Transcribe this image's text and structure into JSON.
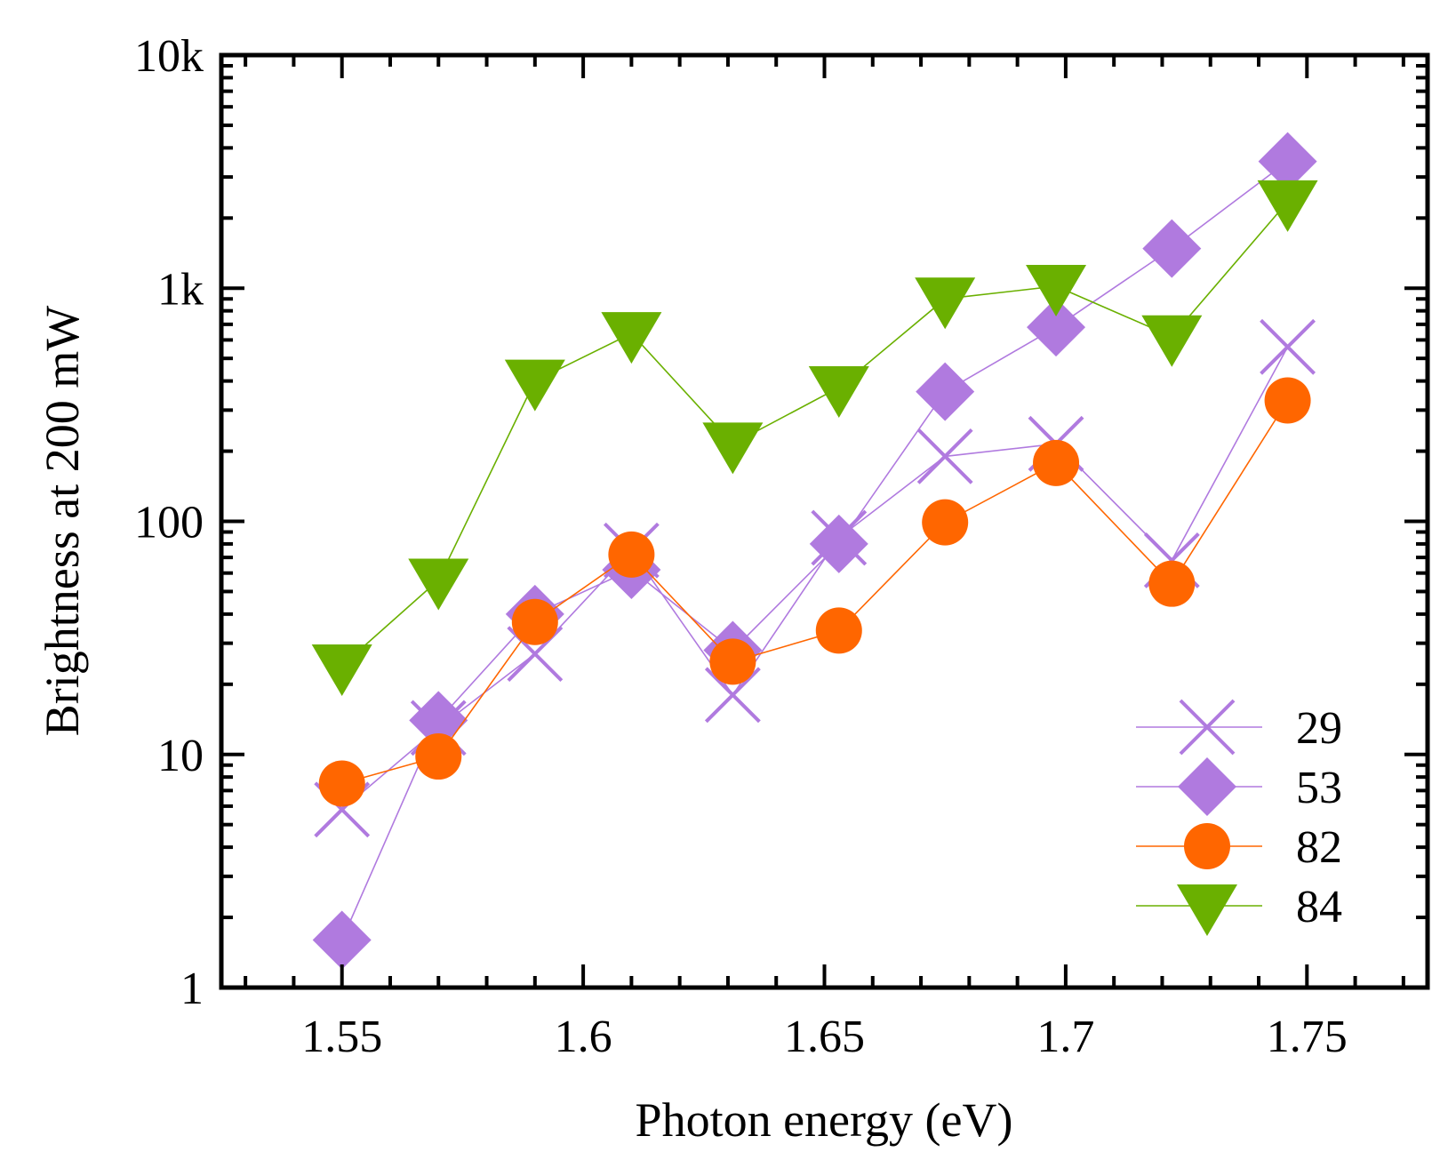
{
  "chart_data": {
    "type": "line",
    "xlabel": "Photon energy (eV)",
    "ylabel": "Brightness at 200 mW",
    "xlim": [
      1.525,
      1.775
    ],
    "ylim": [
      1,
      10000
    ],
    "yscale": "log",
    "x_ticks": [
      1.55,
      1.6,
      1.65,
      1.7,
      1.75
    ],
    "x_tick_labels": [
      "1.55",
      "1.6",
      "1.65",
      "1.7",
      "1.75"
    ],
    "y_ticks": [
      1,
      10,
      100,
      1000,
      10000
    ],
    "y_tick_labels": [
      "1",
      "10",
      "100",
      "1k",
      "10k"
    ],
    "legend_position": "bottom-right",
    "x": [
      1.55,
      1.57,
      1.59,
      1.61,
      1.631,
      1.653,
      1.675,
      1.698,
      1.722,
      1.746
    ],
    "series": [
      {
        "name": "29",
        "marker": "x",
        "color": "#b07adf",
        "values": [
          5.8,
          13,
          27,
          75,
          18,
          85,
          190,
          215,
          68,
          560
        ]
      },
      {
        "name": "53",
        "marker": "diamond",
        "color": "#b07adf",
        "values": [
          1.6,
          14,
          40,
          62,
          28,
          80,
          360,
          680,
          1480,
          3500
        ]
      },
      {
        "name": "82",
        "marker": "circle",
        "color": "#ff6600",
        "values": [
          7.5,
          9.8,
          37,
          72,
          25,
          34,
          99,
          178,
          54,
          330
        ]
      },
      {
        "name": "84",
        "marker": "triangle-down",
        "color": "#6ab000",
        "values": [
          24,
          56,
          400,
          640,
          215,
          375,
          900,
          1020,
          620,
          2350
        ]
      }
    ]
  }
}
